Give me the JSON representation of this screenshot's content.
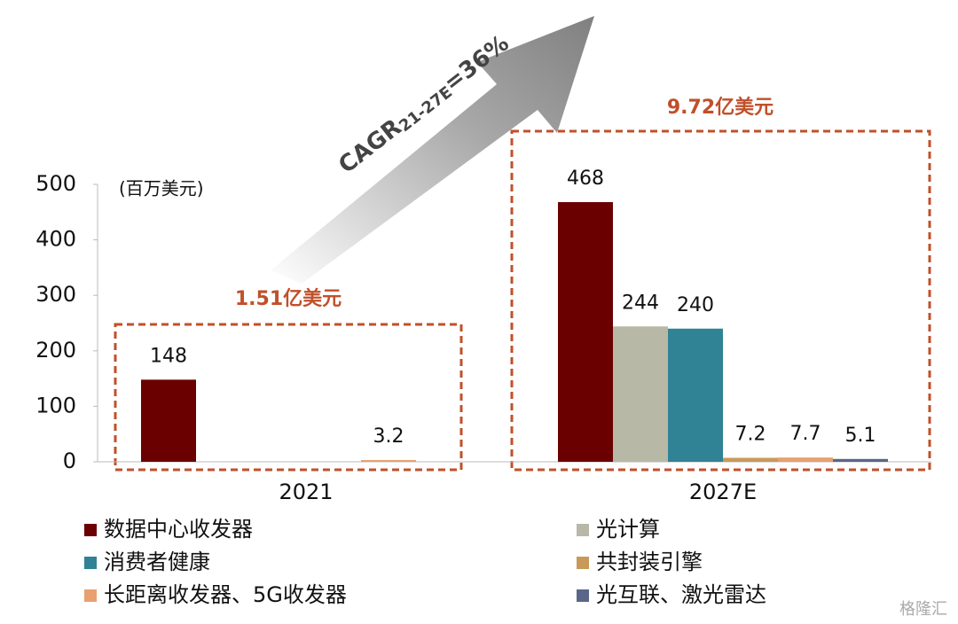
{
  "chart_data": {
    "type": "bar",
    "unit_label": "(百万美元)",
    "categories": [
      "2021",
      "2027E"
    ],
    "series": [
      {
        "name": "数据中心收发器",
        "color": "#6b0000",
        "values": [
          148,
          468
        ]
      },
      {
        "name": "光计算",
        "color": "#b8b8a6",
        "values": [
          null,
          244
        ]
      },
      {
        "name": "消费者健康",
        "color": "#2f8394",
        "values": [
          null,
          240
        ]
      },
      {
        "name": "共封装引擎",
        "color": "#c89a5a",
        "values": [
          null,
          7.2
        ]
      },
      {
        "name": "长距离收发器、5G收发器",
        "color": "#e8a070",
        "values": [
          3.2,
          7.7
        ]
      },
      {
        "name": "光互联、激光雷达",
        "color": "#5a6688",
        "values": [
          null,
          5.1
        ]
      }
    ],
    "ylim": [
      0,
      500
    ],
    "yticks": [
      0,
      100,
      200,
      300,
      400,
      500
    ],
    "grid": false,
    "annotations": {
      "total_2021": "1.51亿美元",
      "total_2027": "9.72亿美元",
      "cagr_main": "CAGR",
      "cagr_sub": "21-27E",
      "cagr_tail": "=36%"
    },
    "watermark": "格隆汇"
  }
}
